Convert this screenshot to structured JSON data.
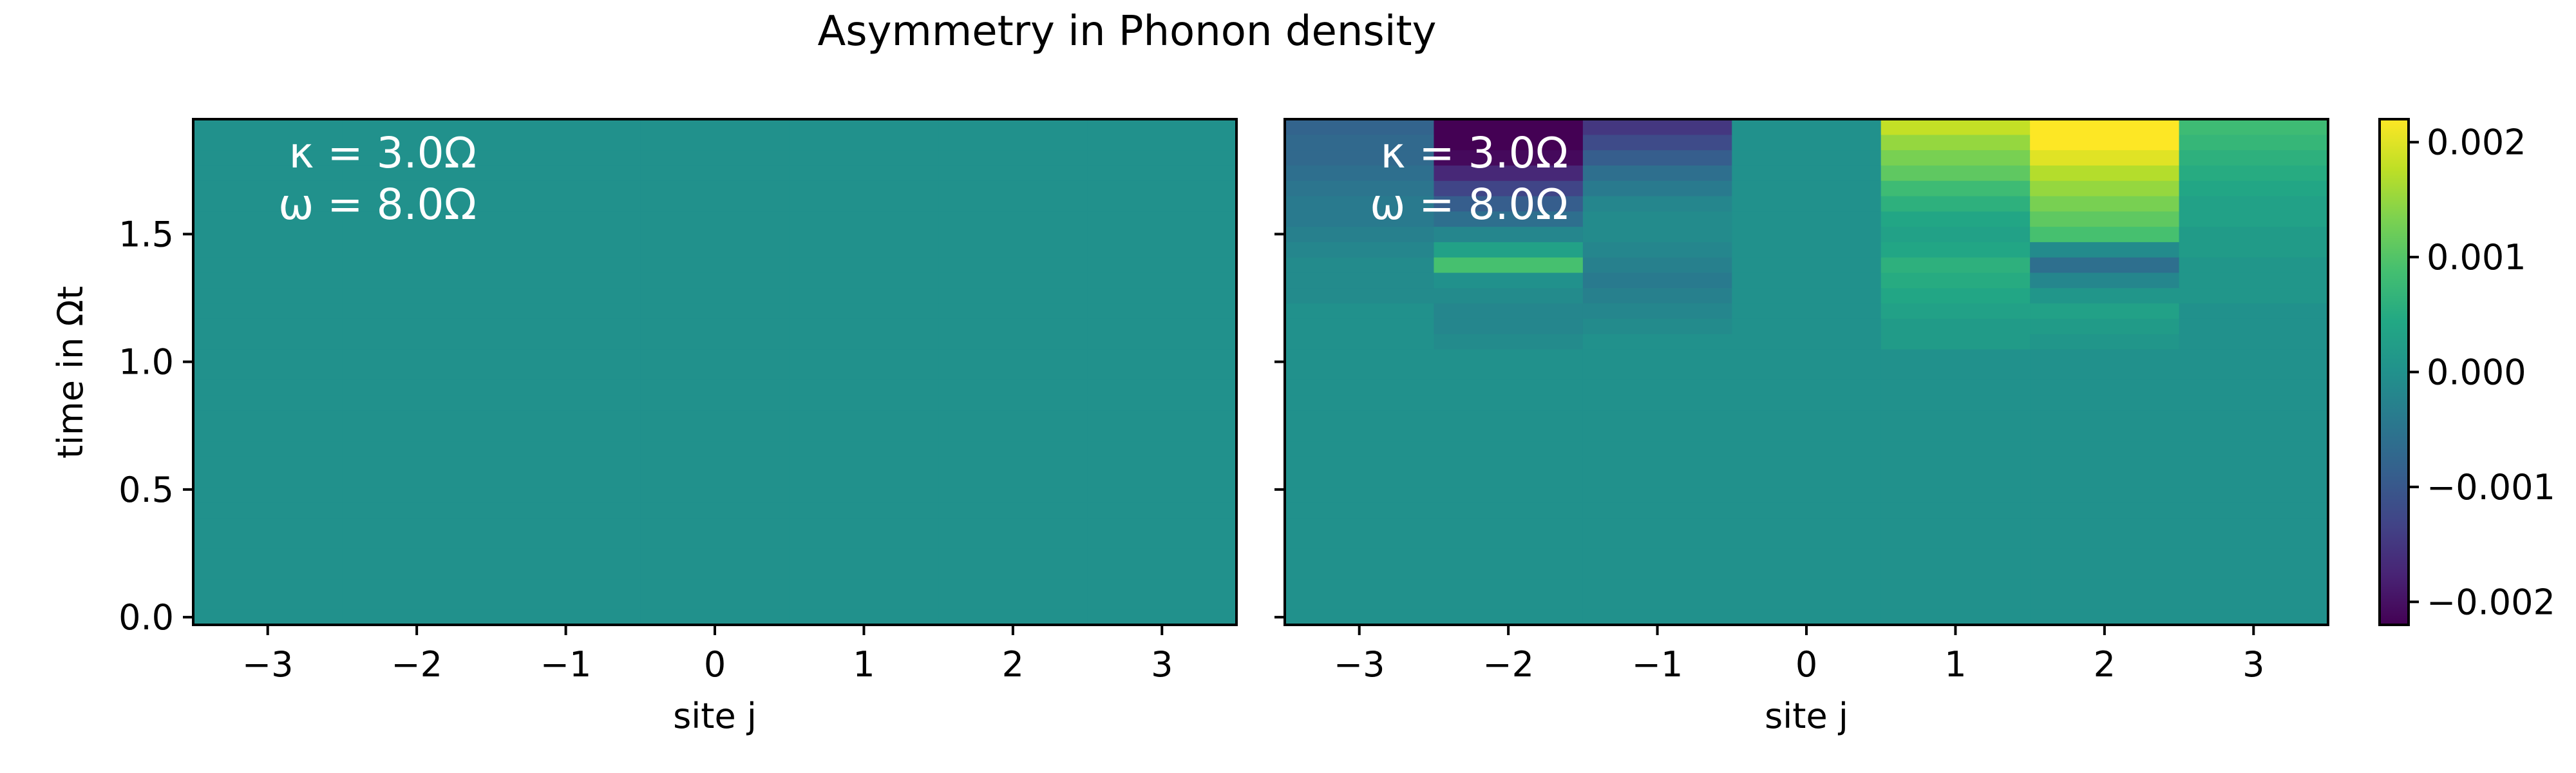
{
  "figure": {
    "title": "Asymmetry in Phonon density"
  },
  "chart_data": {
    "type": "heatmap",
    "title": "Asymmetry in Phonon density",
    "colormap": "viridis",
    "colorbar": {
      "vmin": -0.0022,
      "vmax": 0.0022,
      "ticks": [
        0.002,
        0.001,
        0.0,
        -0.001,
        -0.002
      ],
      "tick_labels": [
        "0.002",
        "0.001",
        "0.000",
        "−0.001",
        "−0.002"
      ]
    },
    "x_sites": [
      -3,
      -2,
      -1,
      0,
      1,
      2,
      3
    ],
    "xlim": [
      -3.5,
      3.5
    ],
    "ylim": [
      -0.03,
      1.95
    ],
    "xticks": [
      -3,
      -2,
      -1,
      0,
      1,
      2,
      3
    ],
    "xtick_labels": [
      "−3",
      "−2",
      "−1",
      "0",
      "1",
      "2",
      "3"
    ],
    "yticks": [
      0.0,
      0.5,
      1.0,
      1.5
    ],
    "ytick_labels": [
      "0.0",
      "0.5",
      "1.0",
      "1.5"
    ],
    "ylabel": "time in Ωt",
    "xlabel": "site j",
    "time_step": 0.06,
    "panels": [
      {
        "annotation": [
          "κ = 3.0Ω",
          "ω = 8.0Ω"
        ],
        "xlabel": "site j",
        "ylabel": "time in Ωt",
        "rows": [
          [
            0,
            0,
            0,
            0,
            0,
            0,
            0
          ],
          [
            0,
            0,
            0,
            0,
            0,
            0,
            0
          ],
          [
            0,
            0,
            0,
            0,
            0,
            0,
            0
          ],
          [
            0,
            0,
            0,
            0,
            0,
            0,
            0
          ],
          [
            0,
            0,
            0,
            0,
            0,
            0,
            0
          ],
          [
            0,
            0,
            0,
            0,
            0,
            0,
            0
          ],
          [
            0,
            0,
            0,
            0,
            0,
            0,
            0
          ],
          [
            0,
            0,
            0,
            0,
            0,
            0,
            0
          ],
          [
            0,
            0,
            0,
            0,
            0,
            0,
            0
          ],
          [
            0,
            0,
            0,
            0,
            0,
            0,
            0
          ],
          [
            0,
            0,
            0,
            0,
            0,
            0,
            0
          ],
          [
            0,
            0,
            0,
            0,
            0,
            0,
            0
          ],
          [
            0,
            0,
            0,
            0,
            0,
            0,
            0
          ],
          [
            0,
            0,
            0,
            0,
            0,
            0,
            0
          ],
          [
            0,
            0,
            0,
            0,
            0,
            0,
            0
          ],
          [
            0,
            0,
            0,
            0,
            0,
            0,
            0
          ],
          [
            0,
            0,
            0,
            0,
            0,
            0,
            0
          ],
          [
            0,
            0,
            0,
            0,
            0,
            0,
            0
          ],
          [
            0,
            0,
            0,
            0,
            0,
            0,
            0
          ],
          [
            0,
            0,
            0,
            0,
            0,
            0,
            0
          ],
          [
            0,
            0,
            0,
            0,
            0,
            0,
            0
          ],
          [
            0,
            0,
            0,
            0,
            0,
            0,
            0
          ],
          [
            0,
            0,
            0,
            0,
            0,
            0,
            0
          ],
          [
            0,
            0,
            0,
            0,
            0,
            0,
            0
          ],
          [
            0,
            0,
            0,
            0,
            0,
            0,
            0
          ],
          [
            0,
            0,
            0,
            0,
            0,
            0,
            0
          ],
          [
            0,
            0,
            0,
            0,
            0,
            0,
            0
          ],
          [
            0,
            0,
            0,
            0,
            0,
            0,
            0
          ],
          [
            0,
            0,
            0,
            0,
            0,
            0,
            0
          ],
          [
            0,
            0,
            0,
            0,
            0,
            0,
            0
          ],
          [
            0,
            0,
            0,
            0,
            0,
            0,
            0
          ],
          [
            0,
            0,
            0,
            0,
            0,
            0,
            0
          ],
          [
            0,
            0,
            0,
            0,
            0,
            0,
            0
          ]
        ]
      },
      {
        "annotation": [
          "κ = 3.0Ω",
          "ω = 8.0Ω"
        ],
        "xlabel": "site j",
        "rows": [
          [
            0,
            0,
            0,
            0,
            0,
            0,
            0
          ],
          [
            0,
            0,
            0,
            0,
            0,
            0,
            0
          ],
          [
            0,
            0,
            0,
            0,
            0,
            0,
            0
          ],
          [
            0,
            0,
            0,
            0,
            0,
            0,
            0
          ],
          [
            0,
            0,
            0,
            0,
            0,
            0,
            0
          ],
          [
            0,
            0,
            0,
            0,
            0,
            0,
            0
          ],
          [
            0,
            0,
            0,
            0,
            0,
            0,
            0
          ],
          [
            0,
            0,
            0,
            0,
            0,
            0,
            0
          ],
          [
            0,
            0,
            0,
            0,
            0,
            0,
            0
          ],
          [
            0,
            0,
            0,
            0,
            0,
            0,
            0
          ],
          [
            0,
            0,
            0,
            0,
            0,
            0,
            0
          ],
          [
            0,
            0,
            0,
            0,
            0,
            0,
            0
          ],
          [
            0,
            0,
            0,
            0,
            0,
            0,
            0
          ],
          [
            0,
            0,
            0,
            0,
            0,
            0,
            0
          ],
          [
            0,
            0,
            0,
            0,
            0,
            0,
            0
          ],
          [
            0,
            0,
            0,
            0,
            0,
            0,
            0
          ],
          [
            0,
            0,
            0,
            0,
            0,
            0,
            0
          ],
          [
            0,
            0,
            0,
            0,
            0,
            0,
            0
          ],
          [
            0,
            -0.0001,
            0,
            0,
            0.0002,
            0.0001,
            0
          ],
          [
            0,
            -0.0002,
            -0.0001,
            0,
            0.0002,
            0.0002,
            0
          ],
          [
            0,
            -0.0002,
            -0.0002,
            0,
            0.0003,
            0.0003,
            0
          ],
          [
            -0.0001,
            -0.0001,
            -0.0003,
            0,
            0.0004,
            0.0001,
            0.0001
          ],
          [
            -0.0001,
            0,
            -0.0004,
            0,
            0.0005,
            -0.0002,
            0.0001
          ],
          [
            -0.0001,
            0.0009,
            -0.0003,
            0,
            0.0006,
            -0.0006,
            0.0001
          ],
          [
            -0.0002,
            0.0003,
            -0.0002,
            0,
            0.0004,
            -0.0001,
            0.0002
          ],
          [
            -0.0003,
            -0.0002,
            -0.0001,
            0,
            0.0003,
            0.0009,
            0.0002
          ],
          [
            -0.0004,
            -0.0006,
            -0.0001,
            0,
            0.0004,
            0.0011,
            0.0003
          ],
          [
            -0.0004,
            -0.0009,
            -0.0002,
            0,
            0.0006,
            0.0013,
            0.0003
          ],
          [
            -0.0005,
            -0.0013,
            -0.0004,
            0,
            0.0008,
            0.0015,
            0.0004
          ],
          [
            -0.0006,
            -0.0017,
            -0.0006,
            0,
            0.0011,
            0.0017,
            0.0005
          ],
          [
            -0.0007,
            -0.0021,
            -0.0009,
            0,
            0.0013,
            0.002,
            0.0006
          ],
          [
            -0.0007,
            -0.0022,
            -0.0012,
            0,
            0.0015,
            0.0022,
            0.0007
          ],
          [
            -0.0008,
            -0.0023,
            -0.0015,
            0,
            0.0018,
            0.0023,
            0.0008
          ]
        ]
      }
    ]
  }
}
